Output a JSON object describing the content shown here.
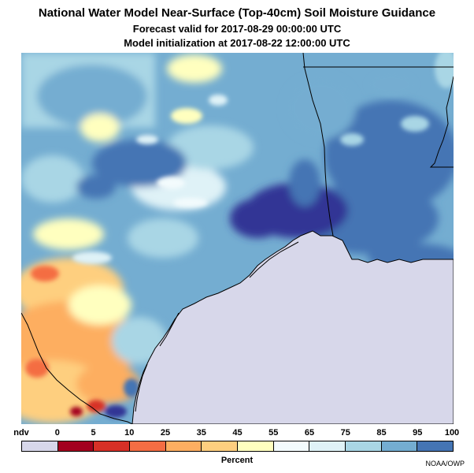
{
  "title": "National Water Model Near-Surface (Top-40cm) Soil Moisture Guidance",
  "subtitle_valid": "Forecast valid for 2017-08-29 00:00:00 UTC",
  "subtitle_init": "Model initialization at 2017-08-22 12:00:00 UTC",
  "legend": {
    "tick_labels": [
      "ndv",
      "0",
      "5",
      "10",
      "25",
      "35",
      "45",
      "55",
      "65",
      "75",
      "85",
      "95",
      "100"
    ],
    "colors": [
      "#d7d7ea",
      "#a3001e",
      "#d73027",
      "#f46d43",
      "#fdae61",
      "#fecf7f",
      "#ffffbf",
      "#f3fbfd",
      "#dff2f7",
      "#a9d6e5",
      "#74add1",
      "#4575b4",
      "#313695"
    ],
    "units_label": "Percent"
  },
  "credit": "NOAA/OWP",
  "map_colors": {
    "ocean": "#d7d7ea",
    "coast": "#000000",
    "border": "#000000"
  }
}
